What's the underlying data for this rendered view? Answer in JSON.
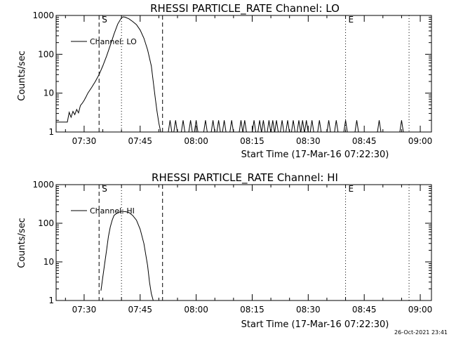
{
  "footer_timestamp": "26-Oct-2021 23:41",
  "chart_data": [
    {
      "type": "line",
      "title": "RHESSI PARTICLE_RATE Channel: LO",
      "xlabel": "Start Time (17-Mar-16 07:22:30)",
      "ylabel": "Counts/sec",
      "y_scale": "log",
      "ylim": [
        1,
        1000
      ],
      "xlim": [
        "07:22:30",
        "09:03:00"
      ],
      "x_tick_labels": [
        "07:30",
        "07:45",
        "08:00",
        "08:15",
        "08:30",
        "08:45",
        "09:00"
      ],
      "y_tick_labels": [
        "1",
        "10",
        "100",
        "1000"
      ],
      "legend": {
        "position": "top-left",
        "entries": [
          "Channel: LO"
        ]
      },
      "markers": [
        {
          "label": "S",
          "time": "07:34:00",
          "style": "dashed"
        },
        {
          "label": "",
          "time": "07:40:00",
          "style": "dotted"
        },
        {
          "label": "",
          "time": "07:51:00",
          "style": "dashed"
        },
        {
          "label": "E",
          "time": "08:40:00",
          "style": "dotted"
        },
        {
          "label": "",
          "time": "08:57:00",
          "style": "dotted"
        }
      ],
      "series": [
        {
          "name": "Channel: LO",
          "x": [
            "07:22:30",
            "07:25:30",
            "07:26:00",
            "07:26:30",
            "07:27:00",
            "07:27:30",
            "07:28:00",
            "07:28:30",
            "07:29:00",
            "07:29:30",
            "07:30:00",
            "07:30:30",
            "07:31:00",
            "07:32:00",
            "07:33:00",
            "07:34:00",
            "07:35:00",
            "07:36:00",
            "07:37:00",
            "07:38:00",
            "07:39:00",
            "07:40:00",
            "07:40:30",
            "07:41:00",
            "07:42:00",
            "07:43:00",
            "07:44:00",
            "07:45:00",
            "07:46:00",
            "07:47:00",
            "07:48:00",
            "07:48:30",
            "07:49:00",
            "07:49:30",
            "07:50:00",
            "07:50:30"
          ],
          "y": [
            1.8,
            1.8,
            3.2,
            2.4,
            3.4,
            2.8,
            3.8,
            3.1,
            4.8,
            5.5,
            6.5,
            8,
            10,
            14,
            20,
            30,
            50,
            90,
            170,
            330,
            600,
            880,
            920,
            900,
            820,
            700,
            580,
            420,
            260,
            130,
            50,
            20,
            8,
            3.5,
            1.7,
            1
          ]
        },
        {
          "name": "",
          "note": "isolated 1-count spikes (peak 2 counts/sec)",
          "spike_times": [
            "07:53:00",
            "07:54:30",
            "07:56:30",
            "07:58:30",
            "08:00:00",
            "08:02:30",
            "08:04:30",
            "08:06:00",
            "08:07:30",
            "08:09:30",
            "08:12:00",
            "08:13:00",
            "08:15:30",
            "08:17:00",
            "08:18:00",
            "08:19:30",
            "08:20:30",
            "08:21:30",
            "08:23:00",
            "08:24:30",
            "08:26:00",
            "08:27:30",
            "08:28:30",
            "08:29:30",
            "08:31:00",
            "08:33:00",
            "08:35:30",
            "08:37:30",
            "08:40:00",
            "08:43:00",
            "08:49:00",
            "08:55:00"
          ],
          "spike_value": 2
        }
      ]
    },
    {
      "type": "line",
      "title": "RHESSI PARTICLE_RATE Channel: HI",
      "xlabel": "Start Time (17-Mar-16 07:22:30)",
      "ylabel": "Counts/sec",
      "y_scale": "log",
      "ylim": [
        1,
        1000
      ],
      "xlim": [
        "07:22:30",
        "09:03:00"
      ],
      "x_tick_labels": [
        "07:30",
        "07:45",
        "08:00",
        "08:15",
        "08:30",
        "08:45",
        "09:00"
      ],
      "y_tick_labels": [
        "1",
        "10",
        "100",
        "1000"
      ],
      "legend": {
        "position": "top-left",
        "entries": [
          "Channel: HI"
        ]
      },
      "markers": [
        {
          "label": "S",
          "time": "07:34:00",
          "style": "dashed"
        },
        {
          "label": "",
          "time": "07:40:00",
          "style": "dotted"
        },
        {
          "label": "",
          "time": "07:51:00",
          "style": "dashed"
        },
        {
          "label": "E",
          "time": "08:40:00",
          "style": "dotted"
        },
        {
          "label": "",
          "time": "08:57:00",
          "style": "dotted"
        }
      ],
      "series": [
        {
          "name": "Channel: HI",
          "x": [
            "07:34:30",
            "07:35:00",
            "07:35:30",
            "07:36:00",
            "07:36:30",
            "07:37:00",
            "07:37:30",
            "07:38:00",
            "07:39:00",
            "07:40:00",
            "07:41:00",
            "07:42:00",
            "07:43:00",
            "07:44:00",
            "07:45:00",
            "07:46:00",
            "07:47:00",
            "07:47:30",
            "07:48:00",
            "07:48:30"
          ],
          "y": [
            1.8,
            4,
            9,
            20,
            45,
            80,
            120,
            160,
            190,
            200,
            200,
            190,
            160,
            120,
            70,
            30,
            8,
            3,
            1.5,
            1
          ]
        }
      ]
    }
  ]
}
